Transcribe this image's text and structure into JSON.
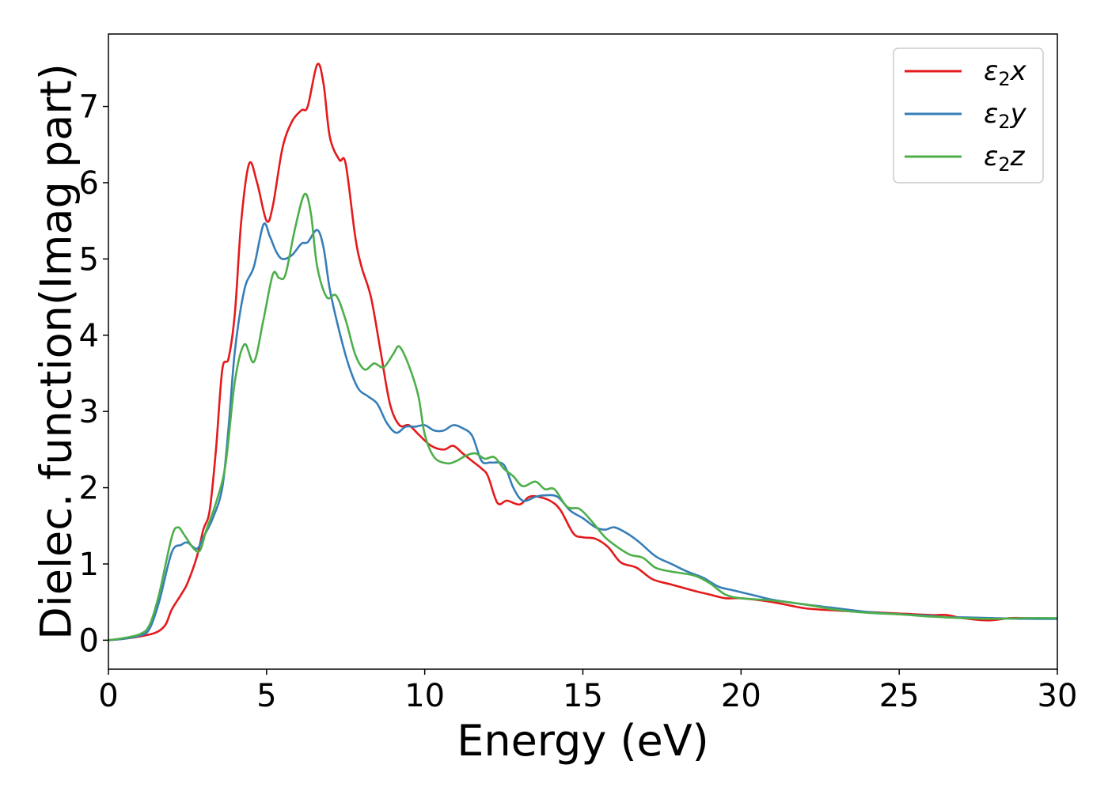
{
  "chart_data": {
    "type": "line",
    "xlabel": "Energy (eV)",
    "ylabel": "Dielec. function(Imag part)",
    "xlim": [
      0,
      30
    ],
    "ylim": [
      -0.38,
      7.95
    ],
    "xticks": [
      0,
      5,
      10,
      15,
      20,
      25,
      30
    ],
    "yticks": [
      0,
      1,
      2,
      3,
      4,
      5,
      6,
      7
    ],
    "grid": false,
    "legend_position": "top-right",
    "series": [
      {
        "name": "ε2x",
        "legend_main": "ε",
        "legend_sub": "2",
        "legend_suffix": "x",
        "color": "#e41a1c",
        "points": [
          [
            0,
            0
          ],
          [
            0.5,
            0.02
          ],
          [
            1.0,
            0.05
          ],
          [
            1.5,
            0.1
          ],
          [
            1.8,
            0.2
          ],
          [
            2.0,
            0.4
          ],
          [
            2.3,
            0.6
          ],
          [
            2.5,
            0.75
          ],
          [
            2.8,
            1.1
          ],
          [
            3.0,
            1.45
          ],
          [
            3.2,
            1.7
          ],
          [
            3.4,
            2.5
          ],
          [
            3.6,
            3.55
          ],
          [
            3.8,
            3.7
          ],
          [
            4.0,
            4.3
          ],
          [
            4.2,
            5.5
          ],
          [
            4.45,
            6.25
          ],
          [
            4.7,
            6.0
          ],
          [
            5.0,
            5.5
          ],
          [
            5.2,
            5.7
          ],
          [
            5.5,
            6.45
          ],
          [
            5.8,
            6.8
          ],
          [
            6.1,
            6.95
          ],
          [
            6.3,
            7.0
          ],
          [
            6.6,
            7.55
          ],
          [
            6.8,
            7.3
          ],
          [
            7.0,
            6.6
          ],
          [
            7.3,
            6.3
          ],
          [
            7.5,
            6.25
          ],
          [
            7.8,
            5.3
          ],
          [
            8.0,
            4.9
          ],
          [
            8.3,
            4.5
          ],
          [
            8.6,
            3.8
          ],
          [
            8.9,
            3.1
          ],
          [
            9.2,
            2.82
          ],
          [
            9.5,
            2.82
          ],
          [
            9.8,
            2.7
          ],
          [
            10.2,
            2.55
          ],
          [
            10.6,
            2.5
          ],
          [
            10.9,
            2.55
          ],
          [
            11.2,
            2.45
          ],
          [
            11.5,
            2.35
          ],
          [
            11.8,
            2.25
          ],
          [
            12.0,
            2.15
          ],
          [
            12.3,
            1.8
          ],
          [
            12.6,
            1.83
          ],
          [
            13.0,
            1.78
          ],
          [
            13.3,
            1.88
          ],
          [
            13.6,
            1.88
          ],
          [
            14.0,
            1.82
          ],
          [
            14.3,
            1.7
          ],
          [
            14.7,
            1.4
          ],
          [
            15.0,
            1.35
          ],
          [
            15.4,
            1.33
          ],
          [
            15.8,
            1.22
          ],
          [
            16.2,
            1.02
          ],
          [
            16.7,
            0.95
          ],
          [
            17.2,
            0.8
          ],
          [
            17.8,
            0.73
          ],
          [
            18.5,
            0.65
          ],
          [
            19.0,
            0.6
          ],
          [
            19.5,
            0.55
          ],
          [
            20.0,
            0.55
          ],
          [
            21.0,
            0.5
          ],
          [
            22.0,
            0.42
          ],
          [
            23.0,
            0.39
          ],
          [
            24.0,
            0.37
          ],
          [
            25.0,
            0.35
          ],
          [
            26.0,
            0.33
          ],
          [
            26.5,
            0.33
          ],
          [
            27.0,
            0.29
          ],
          [
            27.8,
            0.26
          ],
          [
            28.5,
            0.29
          ],
          [
            29.0,
            0.29
          ],
          [
            30.0,
            0.28
          ]
        ]
      },
      {
        "name": "ε2y",
        "legend_main": "ε",
        "legend_sub": "2",
        "legend_suffix": "y",
        "color": "#377eb8",
        "points": [
          [
            0,
            0
          ],
          [
            0.5,
            0.02
          ],
          [
            1.0,
            0.06
          ],
          [
            1.3,
            0.15
          ],
          [
            1.6,
            0.5
          ],
          [
            2.0,
            1.15
          ],
          [
            2.3,
            1.25
          ],
          [
            2.5,
            1.28
          ],
          [
            2.8,
            1.2
          ],
          [
            3.0,
            1.35
          ],
          [
            3.3,
            1.6
          ],
          [
            3.6,
            2.0
          ],
          [
            3.8,
            2.8
          ],
          [
            4.0,
            3.8
          ],
          [
            4.3,
            4.6
          ],
          [
            4.6,
            4.9
          ],
          [
            4.9,
            5.45
          ],
          [
            5.1,
            5.3
          ],
          [
            5.3,
            5.1
          ],
          [
            5.5,
            5.0
          ],
          [
            5.8,
            5.05
          ],
          [
            6.1,
            5.2
          ],
          [
            6.3,
            5.22
          ],
          [
            6.6,
            5.38
          ],
          [
            6.8,
            5.15
          ],
          [
            7.0,
            4.6
          ],
          [
            7.3,
            4.05
          ],
          [
            7.6,
            3.6
          ],
          [
            7.9,
            3.3
          ],
          [
            8.2,
            3.2
          ],
          [
            8.5,
            3.1
          ],
          [
            8.8,
            2.85
          ],
          [
            9.1,
            2.72
          ],
          [
            9.4,
            2.8
          ],
          [
            9.7,
            2.8
          ],
          [
            10.0,
            2.82
          ],
          [
            10.3,
            2.75
          ],
          [
            10.6,
            2.75
          ],
          [
            10.9,
            2.82
          ],
          [
            11.2,
            2.78
          ],
          [
            11.5,
            2.68
          ],
          [
            11.8,
            2.35
          ],
          [
            12.1,
            2.33
          ],
          [
            12.5,
            2.3
          ],
          [
            12.8,
            2.0
          ],
          [
            13.1,
            1.83
          ],
          [
            13.5,
            1.88
          ],
          [
            13.8,
            1.9
          ],
          [
            14.2,
            1.88
          ],
          [
            14.6,
            1.7
          ],
          [
            15.0,
            1.6
          ],
          [
            15.4,
            1.48
          ],
          [
            15.7,
            1.45
          ],
          [
            16.0,
            1.48
          ],
          [
            16.4,
            1.4
          ],
          [
            16.8,
            1.28
          ],
          [
            17.3,
            1.1
          ],
          [
            17.8,
            1.0
          ],
          [
            18.3,
            0.9
          ],
          [
            18.8,
            0.82
          ],
          [
            19.3,
            0.7
          ],
          [
            19.8,
            0.65
          ],
          [
            20.5,
            0.58
          ],
          [
            21.0,
            0.53
          ],
          [
            22.0,
            0.47
          ],
          [
            23.0,
            0.42
          ],
          [
            24.0,
            0.37
          ],
          [
            25.0,
            0.34
          ],
          [
            26.0,
            0.32
          ],
          [
            26.5,
            0.3
          ],
          [
            27.0,
            0.3
          ],
          [
            28.0,
            0.29
          ],
          [
            29.0,
            0.28
          ],
          [
            30.0,
            0.28
          ]
        ]
      },
      {
        "name": "ε2z",
        "legend_main": "ε",
        "legend_sub": "2",
        "legend_suffix": "z",
        "color": "#4daf4a",
        "points": [
          [
            0,
            0
          ],
          [
            0.5,
            0.03
          ],
          [
            1.0,
            0.08
          ],
          [
            1.3,
            0.2
          ],
          [
            1.6,
            0.6
          ],
          [
            2.0,
            1.35
          ],
          [
            2.2,
            1.48
          ],
          [
            2.4,
            1.38
          ],
          [
            2.7,
            1.2
          ],
          [
            2.9,
            1.18
          ],
          [
            3.1,
            1.45
          ],
          [
            3.4,
            1.8
          ],
          [
            3.7,
            2.3
          ],
          [
            4.0,
            3.4
          ],
          [
            4.3,
            3.88
          ],
          [
            4.6,
            3.65
          ],
          [
            4.9,
            4.2
          ],
          [
            5.2,
            4.8
          ],
          [
            5.4,
            4.75
          ],
          [
            5.6,
            4.8
          ],
          [
            5.9,
            5.4
          ],
          [
            6.2,
            5.85
          ],
          [
            6.4,
            5.6
          ],
          [
            6.6,
            4.9
          ],
          [
            6.9,
            4.5
          ],
          [
            7.2,
            4.52
          ],
          [
            7.5,
            4.2
          ],
          [
            7.8,
            3.75
          ],
          [
            8.1,
            3.55
          ],
          [
            8.4,
            3.63
          ],
          [
            8.7,
            3.58
          ],
          [
            9.0,
            3.75
          ],
          [
            9.2,
            3.85
          ],
          [
            9.5,
            3.6
          ],
          [
            9.8,
            3.2
          ],
          [
            10.0,
            2.7
          ],
          [
            10.3,
            2.4
          ],
          [
            10.7,
            2.32
          ],
          [
            11.0,
            2.35
          ],
          [
            11.3,
            2.42
          ],
          [
            11.6,
            2.45
          ],
          [
            11.9,
            2.38
          ],
          [
            12.2,
            2.4
          ],
          [
            12.5,
            2.25
          ],
          [
            12.8,
            2.15
          ],
          [
            13.1,
            2.02
          ],
          [
            13.5,
            2.08
          ],
          [
            13.8,
            1.98
          ],
          [
            14.1,
            1.98
          ],
          [
            14.5,
            1.75
          ],
          [
            14.9,
            1.72
          ],
          [
            15.3,
            1.55
          ],
          [
            15.7,
            1.35
          ],
          [
            16.1,
            1.22
          ],
          [
            16.5,
            1.12
          ],
          [
            16.9,
            1.08
          ],
          [
            17.3,
            0.95
          ],
          [
            17.8,
            0.9
          ],
          [
            18.5,
            0.85
          ],
          [
            19.0,
            0.75
          ],
          [
            19.5,
            0.6
          ],
          [
            20.0,
            0.55
          ],
          [
            21.0,
            0.52
          ],
          [
            22.0,
            0.47
          ],
          [
            23.0,
            0.4
          ],
          [
            24.0,
            0.36
          ],
          [
            25.0,
            0.34
          ],
          [
            26.0,
            0.31
          ],
          [
            27.0,
            0.29
          ],
          [
            28.0,
            0.28
          ],
          [
            29.0,
            0.29
          ],
          [
            30.0,
            0.29
          ]
        ]
      }
    ]
  }
}
